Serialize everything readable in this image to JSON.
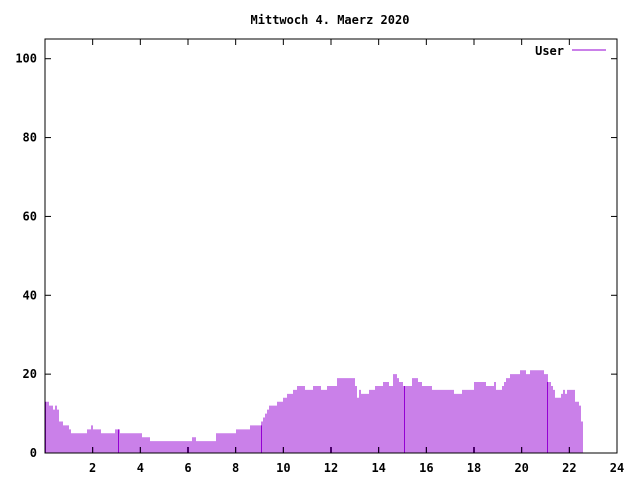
{
  "chart_data": {
    "type": "bar",
    "title": "Mittwoch 4. Maerz 2020",
    "xlabel": "",
    "ylabel": "",
    "xlim": [
      0,
      24
    ],
    "ylim": [
      0,
      105
    ],
    "x_ticks": [
      2,
      4,
      6,
      8,
      10,
      12,
      14,
      16,
      18,
      20,
      22,
      24
    ],
    "y_ticks": [
      0,
      20,
      40,
      60,
      80,
      100
    ],
    "grid": false,
    "legend_position": "top-right",
    "series": [
      {
        "name": "User",
        "color": "#9400d3",
        "sample_interval_min": 5,
        "values": [
          13,
          13,
          12,
          12,
          11,
          12,
          11,
          8,
          8,
          7,
          7,
          7,
          6,
          5,
          5,
          5,
          5,
          5,
          5,
          5,
          5,
          6,
          6,
          7,
          6,
          6,
          6,
          6,
          5,
          5,
          5,
          5,
          5,
          5,
          5,
          6,
          6,
          6,
          5,
          5,
          5,
          5,
          5,
          5,
          5,
          5,
          5,
          5,
          5,
          4,
          4,
          4,
          4,
          3,
          3,
          3,
          3,
          3,
          3,
          3,
          3,
          3,
          3,
          3,
          3,
          3,
          3,
          3,
          3,
          3,
          3,
          3,
          3,
          3,
          4,
          4,
          3,
          3,
          3,
          3,
          3,
          3,
          3,
          3,
          3,
          3,
          5,
          5,
          5,
          5,
          5,
          5,
          5,
          5,
          5,
          5,
          6,
          6,
          6,
          6,
          6,
          6,
          6,
          7,
          7,
          7,
          7,
          7,
          7,
          8,
          9,
          10,
          11,
          12,
          12,
          12,
          12,
          13,
          13,
          13,
          14,
          14,
          15,
          15,
          15,
          16,
          16,
          17,
          17,
          17,
          17,
          16,
          16,
          16,
          16,
          17,
          17,
          17,
          17,
          16,
          16,
          16,
          17,
          17,
          17,
          17,
          17,
          19,
          19,
          19,
          19,
          19,
          19,
          19,
          19,
          19,
          17,
          14,
          16,
          15,
          15,
          15,
          15,
          16,
          16,
          16,
          17,
          17,
          17,
          17,
          18,
          18,
          18,
          17,
          17,
          20,
          20,
          19,
          18,
          18,
          17,
          17,
          17,
          17,
          17,
          19,
          19,
          19,
          18,
          18,
          17,
          17,
          17,
          17,
          17,
          16,
          16,
          16,
          16,
          16,
          16,
          16,
          16,
          16,
          16,
          16,
          15,
          15,
          15,
          15,
          16,
          16,
          16,
          16,
          16,
          16,
          18,
          18,
          18,
          18,
          18,
          18,
          17,
          17,
          17,
          17,
          18,
          16,
          16,
          16,
          17,
          18,
          19,
          19,
          20,
          20,
          20,
          20,
          20,
          21,
          21,
          21,
          20,
          20,
          21,
          21,
          21,
          21,
          21,
          21,
          21,
          20,
          20,
          18,
          18,
          17,
          16,
          14,
          14,
          14,
          15,
          16,
          15,
          16,
          16,
          16,
          16,
          13,
          13,
          12,
          8
        ]
      }
    ]
  }
}
